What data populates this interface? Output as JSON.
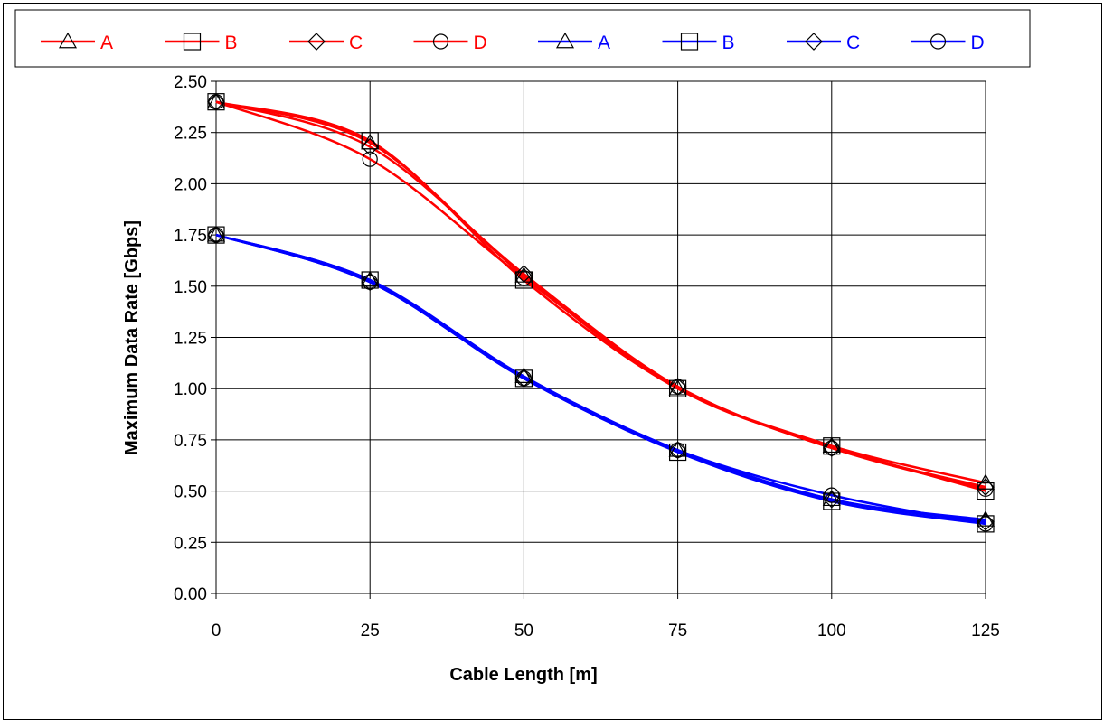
{
  "chart_data": {
    "type": "line",
    "title": "",
    "xlabel": "Cable Length [m]",
    "ylabel": "Maximum Data Rate [Gbps]",
    "x": [
      0,
      25,
      50,
      75,
      100,
      125
    ],
    "x_ticks": [
      "0",
      "25",
      "50",
      "75",
      "100",
      "125"
    ],
    "y_ticks": [
      "0.00",
      "0.25",
      "0.50",
      "0.75",
      "1.00",
      "1.25",
      "1.50",
      "1.75",
      "2.00",
      "2.25",
      "2.50"
    ],
    "xlim": [
      0,
      125
    ],
    "ylim": [
      0,
      2.5
    ],
    "grid": true,
    "legend_position": "top",
    "series": [
      {
        "name": "A",
        "color": "#ff0000",
        "marker": "triangle",
        "values": [
          2.4,
          2.2,
          1.55,
          1.0,
          0.72,
          0.54
        ]
      },
      {
        "name": "B",
        "color": "#ff0000",
        "marker": "square",
        "values": [
          2.4,
          2.21,
          1.53,
          1.0,
          0.72,
          0.5
        ]
      },
      {
        "name": "C",
        "color": "#ff0000",
        "marker": "diamond",
        "values": [
          2.4,
          2.18,
          1.56,
          1.01,
          0.71,
          0.52
        ]
      },
      {
        "name": "D",
        "color": "#ff0000",
        "marker": "circle",
        "values": [
          2.4,
          2.12,
          1.54,
          1.01,
          0.71,
          0.51
        ]
      },
      {
        "name": "A",
        "color": "#0000ff",
        "marker": "triangle",
        "values": [
          1.75,
          1.53,
          1.06,
          0.7,
          0.46,
          0.36
        ]
      },
      {
        "name": "B",
        "color": "#0000ff",
        "marker": "square",
        "values": [
          1.75,
          1.53,
          1.05,
          0.69,
          0.45,
          0.34
        ]
      },
      {
        "name": "C",
        "color": "#0000ff",
        "marker": "diamond",
        "values": [
          1.75,
          1.52,
          1.05,
          0.7,
          0.46,
          0.35
        ]
      },
      {
        "name": "D",
        "color": "#0000ff",
        "marker": "circle",
        "values": [
          1.75,
          1.52,
          1.05,
          0.7,
          0.48,
          0.34
        ]
      }
    ]
  }
}
